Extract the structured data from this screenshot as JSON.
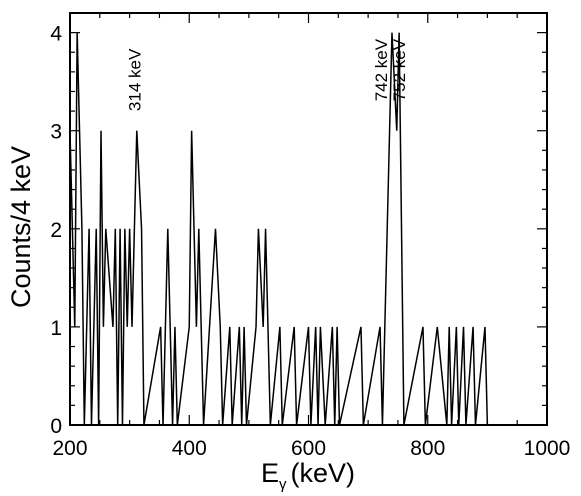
{
  "chart_data": {
    "type": "bar",
    "subtype": "step-histogram",
    "title": "",
    "xlabel": "E",
    "xlabel_subscript": "γ",
    "xlabel_unit": "(keV)",
    "ylabel": "Counts/4 keV",
    "xlim": [
      200,
      1000
    ],
    "ylim": [
      0,
      4.2
    ],
    "bin_width": 4,
    "x_ticks": [
      200,
      400,
      600,
      800,
      1000
    ],
    "x_tick_labels": [
      "200",
      "400",
      "600",
      "800",
      "1000"
    ],
    "y_ticks": [
      0,
      1,
      2,
      3,
      4
    ],
    "y_tick_labels": [
      "0",
      "1",
      "2",
      "3",
      "4"
    ],
    "grid": false,
    "line_color": "#000000",
    "bins": [
      {
        "x": 200,
        "y": 3
      },
      {
        "x": 204,
        "y": 3
      },
      {
        "x": 208,
        "y": 1
      },
      {
        "x": 212,
        "y": 4
      },
      {
        "x": 216,
        "y": 4
      },
      {
        "x": 220,
        "y": 2
      },
      {
        "x": 228,
        "y": 1
      },
      {
        "x": 232,
        "y": 2
      },
      {
        "x": 240,
        "y": 1
      },
      {
        "x": 244,
        "y": 2
      },
      {
        "x": 252,
        "y": 3
      },
      {
        "x": 256,
        "y": 1
      },
      {
        "x": 260,
        "y": 2
      },
      {
        "x": 264,
        "y": 2
      },
      {
        "x": 268,
        "y": 2
      },
      {
        "x": 272,
        "y": 1
      },
      {
        "x": 276,
        "y": 2
      },
      {
        "x": 284,
        "y": 2
      },
      {
        "x": 292,
        "y": 2
      },
      {
        "x": 296,
        "y": 1
      },
      {
        "x": 300,
        "y": 2
      },
      {
        "x": 304,
        "y": 1
      },
      {
        "x": 308,
        "y": 2
      },
      {
        "x": 312,
        "y": 3
      },
      {
        "x": 316,
        "y": 3
      },
      {
        "x": 320,
        "y": 2
      },
      {
        "x": 352,
        "y": 1
      },
      {
        "x": 364,
        "y": 2
      },
      {
        "x": 368,
        "y": 1
      },
      {
        "x": 376,
        "y": 1
      },
      {
        "x": 400,
        "y": 1
      },
      {
        "x": 404,
        "y": 3
      },
      {
        "x": 408,
        "y": 3
      },
      {
        "x": 412,
        "y": 1
      },
      {
        "x": 416,
        "y": 2
      },
      {
        "x": 420,
        "y": 1
      },
      {
        "x": 444,
        "y": 2
      },
      {
        "x": 448,
        "y": 2
      },
      {
        "x": 452,
        "y": 1
      },
      {
        "x": 468,
        "y": 1
      },
      {
        "x": 484,
        "y": 1
      },
      {
        "x": 492,
        "y": 1
      },
      {
        "x": 512,
        "y": 1
      },
      {
        "x": 516,
        "y": 2
      },
      {
        "x": 520,
        "y": 2
      },
      {
        "x": 524,
        "y": 1
      },
      {
        "x": 528,
        "y": 2
      },
      {
        "x": 532,
        "y": 1
      },
      {
        "x": 552,
        "y": 1
      },
      {
        "x": 576,
        "y": 1
      },
      {
        "x": 600,
        "y": 1
      },
      {
        "x": 612,
        "y": 1
      },
      {
        "x": 620,
        "y": 1
      },
      {
        "x": 624,
        "y": 1
      },
      {
        "x": 640,
        "y": 1
      },
      {
        "x": 648,
        "y": 1
      },
      {
        "x": 688,
        "y": 1
      },
      {
        "x": 720,
        "y": 1
      },
      {
        "x": 736,
        "y": 3
      },
      {
        "x": 740,
        "y": 4
      },
      {
        "x": 744,
        "y": 4
      },
      {
        "x": 748,
        "y": 3
      },
      {
        "x": 752,
        "y": 4
      },
      {
        "x": 756,
        "y": 2
      },
      {
        "x": 792,
        "y": 1
      },
      {
        "x": 816,
        "y": 1
      },
      {
        "x": 820,
        "y": 1
      },
      {
        "x": 824,
        "y": 1
      },
      {
        "x": 828,
        "y": 1
      },
      {
        "x": 836,
        "y": 1
      },
      {
        "x": 848,
        "y": 1
      },
      {
        "x": 860,
        "y": 1
      },
      {
        "x": 876,
        "y": 1
      },
      {
        "x": 896,
        "y": 1
      }
    ],
    "annotations": [
      {
        "text": "314 keV",
        "x": 318,
        "y": 3.2
      },
      {
        "text": "742 keV",
        "x": 732,
        "y": 3.3
      },
      {
        "text": "752 keV",
        "x": 762,
        "y": 3.3
      }
    ]
  }
}
